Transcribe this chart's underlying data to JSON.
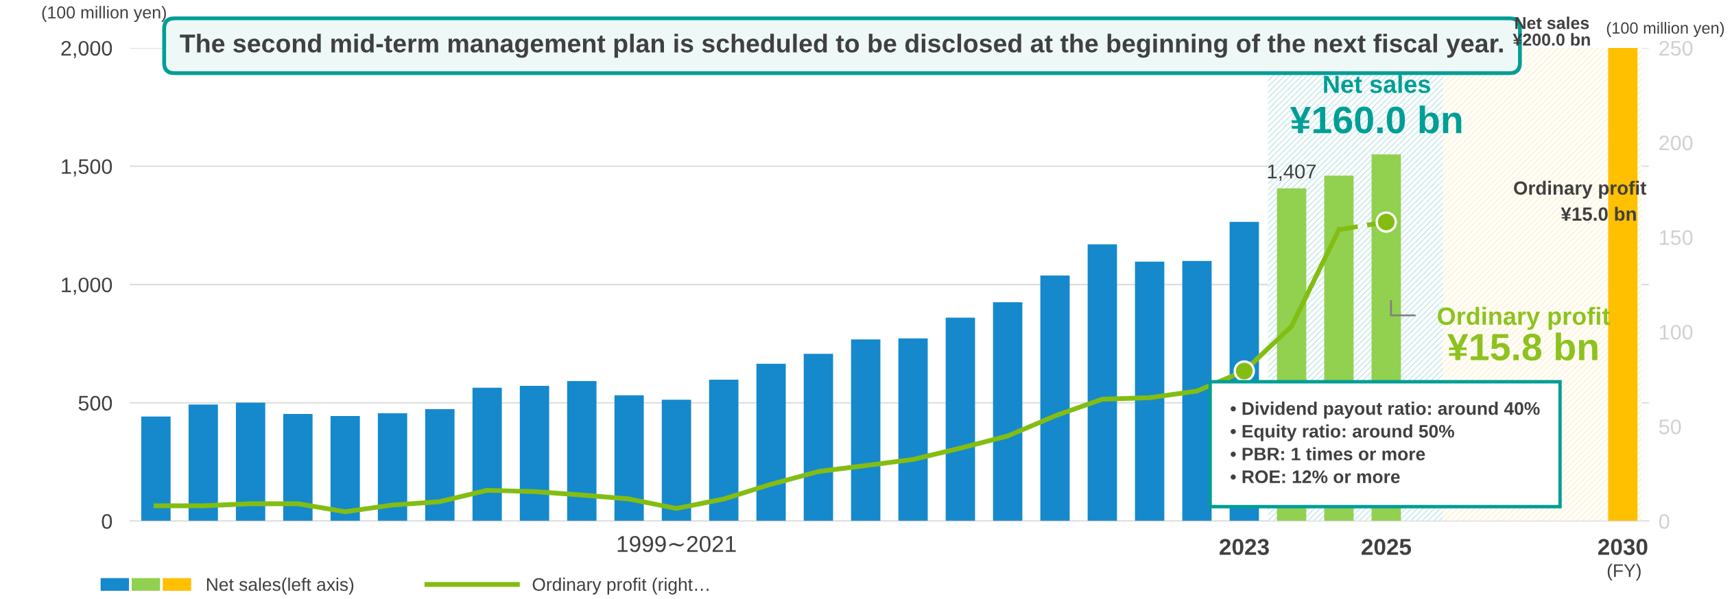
{
  "chart_data": {
    "type": "bar",
    "categories": [
      null,
      null,
      null,
      null,
      null,
      null,
      null,
      null,
      null,
      null,
      null,
      null,
      null,
      null,
      null,
      null,
      null,
      null,
      null,
      null,
      null,
      null,
      null,
      "2023",
      null,
      null,
      "2025",
      null,
      null,
      null,
      null,
      "2030"
    ],
    "series": [
      {
        "name": "Net sales(left axis)",
        "colors": [
          "#1589cc",
          "#1589cc",
          "#1589cc",
          "#1589cc",
          "#1589cc",
          "#1589cc",
          "#1589cc",
          "#1589cc",
          "#1589cc",
          "#1589cc",
          "#1589cc",
          "#1589cc",
          "#1589cc",
          "#1589cc",
          "#1589cc",
          "#1589cc",
          "#1589cc",
          "#1589cc",
          "#1589cc",
          "#1589cc",
          "#1589cc",
          "#1589cc",
          "#1589cc",
          "#1589cc",
          "#92d050",
          "#92d050",
          "#92d050",
          "#1589cc",
          "#1589cc",
          "#1589cc",
          "#1589cc",
          "#ffc000"
        ],
        "values": [
          442,
          493,
          501,
          453,
          444,
          456,
          473,
          564,
          572,
          592,
          532,
          513,
          598,
          665,
          707,
          768,
          772,
          860,
          925,
          1038,
          1170,
          1097,
          1100,
          1265,
          1407,
          1460,
          1550,
          null,
          null,
          null,
          null,
          2000
        ],
        "value_labels": [
          null,
          null,
          null,
          null,
          null,
          null,
          null,
          null,
          null,
          null,
          null,
          null,
          null,
          null,
          null,
          null,
          null,
          null,
          null,
          null,
          null,
          null,
          null,
          null,
          "1,407",
          null,
          null,
          null,
          null,
          null,
          null,
          null
        ]
      },
      {
        "name": "Ordinary profit (right…",
        "type": "line",
        "axis": "y2",
        "color": "#84bd12",
        "line_style": "solid",
        "values": [
          8.1,
          8.1,
          9.2,
          9.2,
          5.0,
          8.5,
          10.3,
          16.3,
          15.6,
          13.8,
          11.7,
          6.7,
          11.7,
          19.5,
          26.2,
          29.4,
          32.6,
          38.6,
          45.0,
          55.6,
          64.4,
          65.2,
          68.7,
          79.3,
          103,
          154,
          null,
          null,
          null,
          null,
          null,
          null
        ]
      },
      {
        "type": "line",
        "axis": "y2",
        "color": "#84bd12",
        "line_style": "dashed",
        "values": [
          null,
          null,
          null,
          null,
          null,
          null,
          null,
          null,
          null,
          null,
          null,
          null,
          null,
          null,
          null,
          null,
          null,
          null,
          null,
          null,
          null,
          null,
          null,
          null,
          null,
          154,
          158,
          null,
          null,
          null,
          null,
          null
        ]
      },
      {
        "type": "scatter",
        "axis": "y2",
        "color": "#84bd12",
        "marker": "circle",
        "values": [
          null,
          null,
          null,
          null,
          null,
          null,
          null,
          null,
          null,
          null,
          null,
          null,
          null,
          null,
          null,
          null,
          null,
          null,
          null,
          null,
          null,
          null,
          null,
          79.3,
          null,
          null,
          158,
          null,
          null,
          null,
          null,
          null
        ]
      }
    ],
    "ylabel": "(100 million yen)",
    "y2label": "(100 million yen)",
    "ylim": [
      0,
      2000
    ],
    "yticks": [
      0,
      500,
      {
        "value": 1000,
        "label": "1,000"
      },
      {
        "value": 1500,
        "label": "1,500"
      },
      {
        "value": 2000,
        "label": "2,000"
      }
    ],
    "y2lim": [
      0,
      250
    ],
    "y2ticks": [
      0,
      50,
      100,
      150,
      200,
      250
    ],
    "grid": "y",
    "legend": "bottom left",
    "annotations": [
      "The second mid-term management plan is scheduled to be disclosed at the beginning of the next fiscal year.",
      "• Dividend payout ratio: around 40%\n• Equity ratio: around 50%\n• PBR: 1 times or more\n• ROE: 12% or more",
      "Net sales",
      "¥160.0 bn",
      "Ordinary profit",
      "¥15.8 bn",
      "Net sales",
      "¥200.0 bn",
      "Ordinary profit",
      "¥15.0 bn",
      "1999∼2021",
      "(FY)"
    ]
  }
}
